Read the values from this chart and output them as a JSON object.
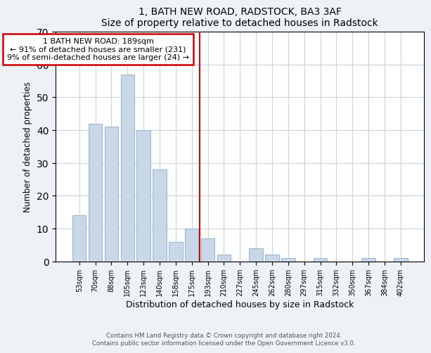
{
  "title": "1, BATH NEW ROAD, RADSTOCK, BA3 3AF",
  "subtitle": "Size of property relative to detached houses in Radstock",
  "xlabel": "Distribution of detached houses by size in Radstock",
  "ylabel": "Number of detached properties",
  "bar_labels": [
    "53sqm",
    "70sqm",
    "88sqm",
    "105sqm",
    "123sqm",
    "140sqm",
    "158sqm",
    "175sqm",
    "193sqm",
    "210sqm",
    "227sqm",
    "245sqm",
    "262sqm",
    "280sqm",
    "297sqm",
    "315sqm",
    "332sqm",
    "350sqm",
    "367sqm",
    "384sqm",
    "402sqm"
  ],
  "bar_values": [
    14,
    42,
    41,
    57,
    40,
    28,
    6,
    10,
    7,
    2,
    0,
    4,
    2,
    1,
    0,
    1,
    0,
    0,
    1,
    0,
    1
  ],
  "bar_color": "#c8d8e8",
  "bar_edge_color": "#a0b8cc",
  "vline_index": 8,
  "annotation_title": "1 BATH NEW ROAD: 189sqm",
  "annotation_line1": "← 91% of detached houses are smaller (231)",
  "annotation_line2": "9% of semi-detached houses are larger (24) →",
  "vline_color": "#cc0000",
  "annotation_box_edge": "#cc0000",
  "ylim": [
    0,
    70
  ],
  "yticks": [
    0,
    10,
    20,
    30,
    40,
    50,
    60,
    70
  ],
  "footer_line1": "Contains HM Land Registry data © Crown copyright and database right 2024.",
  "footer_line2": "Contains public sector information licensed under the Open Government Licence v3.0.",
  "bg_color": "#eef2f6",
  "plot_bg_color": "#ffffff"
}
